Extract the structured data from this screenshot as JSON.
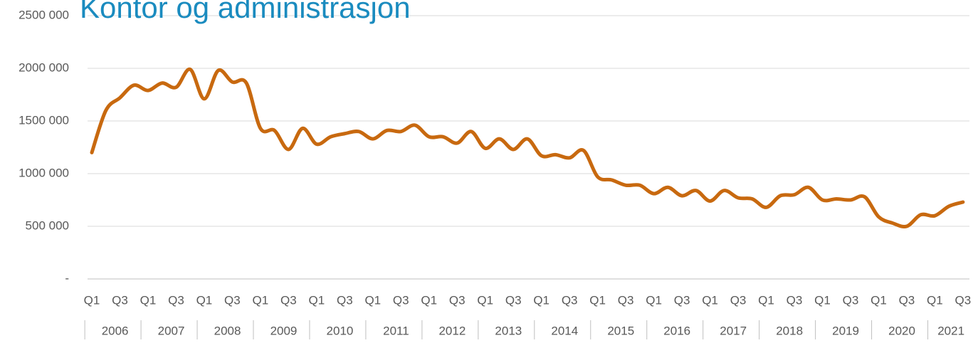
{
  "chart_data": {
    "type": "line",
    "title": "Kontor og administrasjon",
    "categories": [
      "Q1",
      null,
      "Q3",
      null,
      "Q1",
      null,
      "Q3",
      null,
      "Q1",
      null,
      "Q3",
      null,
      "Q1",
      null,
      "Q3",
      null,
      "Q1",
      null,
      "Q3",
      null,
      "Q1",
      null,
      "Q3",
      null,
      "Q1",
      null,
      "Q3",
      null,
      "Q1",
      null,
      "Q3",
      null,
      "Q1",
      null,
      "Q3",
      null,
      "Q1",
      null,
      "Q3",
      null,
      "Q1",
      null,
      "Q3",
      null,
      "Q1",
      null,
      "Q3",
      null,
      "Q1",
      null,
      "Q3",
      null,
      "Q1",
      null,
      "Q3",
      null,
      "Q1",
      null,
      "Q3",
      null,
      "Q1",
      null,
      "Q3"
    ],
    "groups": [
      "2006",
      "2007",
      "2008",
      "2009",
      "2010",
      "2011",
      "2012",
      "2013",
      "2014",
      "2015",
      "2016",
      "2017",
      "2018",
      "2019",
      "2020",
      "2021"
    ],
    "series": [
      {
        "color": "#c8690f",
        "values": [
          1200000,
          1600000,
          1720000,
          1840000,
          1790000,
          1860000,
          1820000,
          1990000,
          1710000,
          1980000,
          1870000,
          1860000,
          1430000,
          1410000,
          1230000,
          1430000,
          1280000,
          1350000,
          1380000,
          1400000,
          1330000,
          1410000,
          1400000,
          1460000,
          1350000,
          1350000,
          1290000,
          1400000,
          1240000,
          1330000,
          1230000,
          1330000,
          1170000,
          1180000,
          1150000,
          1220000,
          970000,
          940000,
          890000,
          890000,
          810000,
          870000,
          790000,
          840000,
          740000,
          840000,
          770000,
          760000,
          680000,
          790000,
          800000,
          870000,
          750000,
          760000,
          750000,
          780000,
          590000,
          530000,
          500000,
          610000,
          600000,
          690000,
          730000
        ]
      }
    ],
    "ylim": [
      0,
      2500000
    ],
    "yticks": [
      {
        "value": 0,
        "label": "-"
      },
      {
        "value": 500000,
        "label": "500 000"
      },
      {
        "value": 1000000,
        "label": "1000 000"
      },
      {
        "value": 1500000,
        "label": "1500 000"
      },
      {
        "value": 2000000,
        "label": "2000 000"
      },
      {
        "value": 2500000,
        "label": "2500 000"
      }
    ],
    "grid": true
  }
}
